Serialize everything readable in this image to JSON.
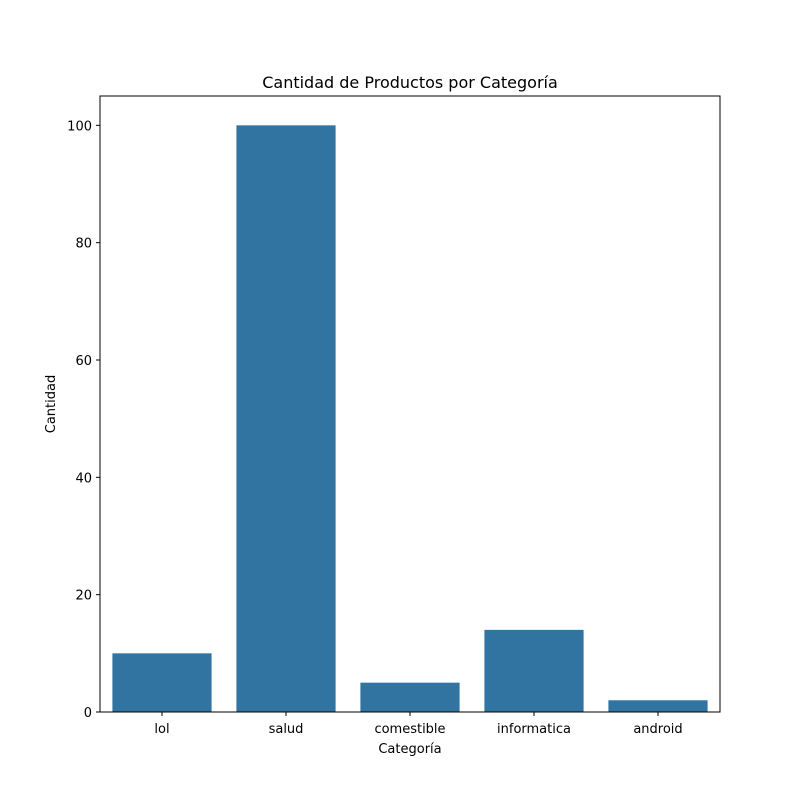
{
  "chart_data": {
    "type": "bar",
    "title": "Cantidad de Productos por Categoría",
    "xlabel": "Categoría",
    "ylabel": "Cantidad",
    "categories": [
      "lol",
      "salud",
      "comestible",
      "informatica",
      "android"
    ],
    "values": [
      10,
      100,
      5,
      14,
      2
    ],
    "ylim": [
      0,
      105
    ],
    "yticks": [
      0,
      20,
      40,
      60,
      80,
      100
    ],
    "grid": false,
    "bar_color": "#3274a1"
  }
}
